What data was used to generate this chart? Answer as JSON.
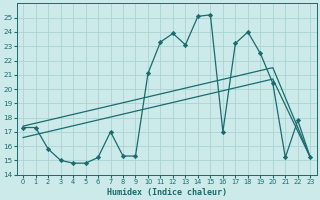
{
  "xlabel": "Humidex (Indice chaleur)",
  "background_color": "#cceaea",
  "line_color": "#1a6b6b",
  "grid_color": "#aad4d4",
  "xlim": [
    -0.5,
    23.5
  ],
  "ylim": [
    14,
    26
  ],
  "yticks": [
    14,
    15,
    16,
    17,
    18,
    19,
    20,
    21,
    22,
    23,
    24,
    25
  ],
  "xticks": [
    0,
    1,
    2,
    3,
    4,
    5,
    6,
    7,
    8,
    9,
    10,
    11,
    12,
    13,
    14,
    15,
    16,
    17,
    18,
    19,
    20,
    21,
    22,
    23
  ],
  "series1_x": [
    0,
    1,
    2,
    3,
    4,
    5,
    6,
    7,
    8,
    9,
    10,
    11,
    12,
    13,
    14,
    15,
    16,
    17,
    18,
    19,
    20,
    21,
    22,
    23
  ],
  "series1_y": [
    17.3,
    17.3,
    15.8,
    15.0,
    14.8,
    14.8,
    15.2,
    17.0,
    15.3,
    15.3,
    21.1,
    23.3,
    23.9,
    23.1,
    25.1,
    25.2,
    17.0,
    23.2,
    24.0,
    22.5,
    20.4,
    15.2,
    17.8,
    15.2
  ],
  "series2_x": [
    0,
    20,
    23
  ],
  "series2_y": [
    17.4,
    21.5,
    15.2
  ],
  "series3_x": [
    0,
    20,
    23
  ],
  "series3_y": [
    16.6,
    20.7,
    15.2
  ]
}
